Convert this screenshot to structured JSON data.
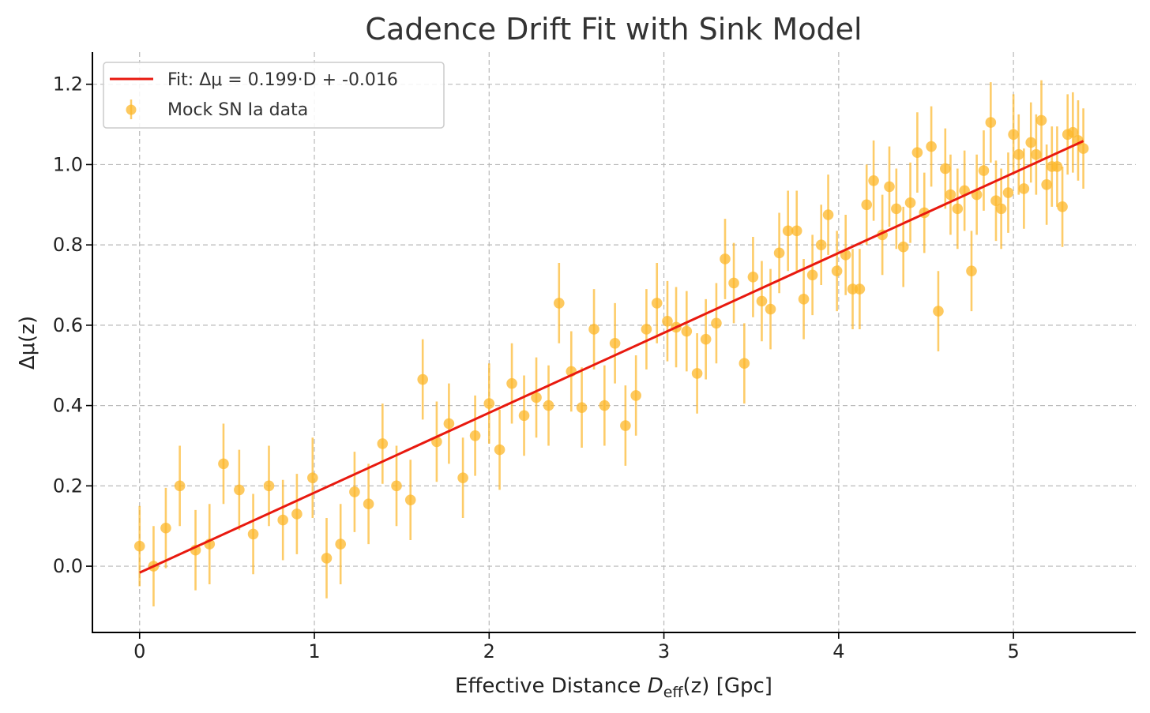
{
  "chart_data": {
    "type": "scatter",
    "title": "Cadence Drift Fit with Sink Model",
    "xlabel": {
      "prefix": "Effective Distance ",
      "var": "D",
      "sub": "eff",
      "arg": "(z)",
      "suffix": " [Gpc]"
    },
    "ylabel": "Δμ(z)",
    "xlim": [
      -0.27,
      5.7
    ],
    "ylim": [
      -0.165,
      1.28
    ],
    "xticks": [
      0,
      1,
      2,
      3,
      4,
      5
    ],
    "xtick_labels": [
      "0",
      "1",
      "2",
      "3",
      "4",
      "5"
    ],
    "yticks": [
      0.0,
      0.2,
      0.4,
      0.6,
      0.8,
      1.0,
      1.2
    ],
    "ytick_labels": [
      "0.0",
      "0.2",
      "0.4",
      "0.6",
      "0.8",
      "1.0",
      "1.2"
    ],
    "grid": true,
    "legend_position": "top-left",
    "colors": {
      "fit": "#e8190f",
      "data": "#fcb72a",
      "axis": "#000000"
    },
    "fit": {
      "label": "Fit: Δμ = 0.199·D + -0.016",
      "slope": 0.199,
      "intercept": -0.016,
      "x_range": [
        0,
        5.4
      ]
    },
    "series": [
      {
        "name": "Mock SN Ia data",
        "error": 0.1,
        "points": [
          [
            0.0,
            0.05
          ],
          [
            0.08,
            0.0
          ],
          [
            0.15,
            0.095
          ],
          [
            0.23,
            0.2
          ],
          [
            0.32,
            0.04
          ],
          [
            0.4,
            0.055
          ],
          [
            0.48,
            0.255
          ],
          [
            0.57,
            0.19
          ],
          [
            0.65,
            0.08
          ],
          [
            0.74,
            0.2
          ],
          [
            0.82,
            0.115
          ],
          [
            0.9,
            0.13
          ],
          [
            0.99,
            0.22
          ],
          [
            1.07,
            0.02
          ],
          [
            1.15,
            0.055
          ],
          [
            1.23,
            0.185
          ],
          [
            1.31,
            0.155
          ],
          [
            1.39,
            0.305
          ],
          [
            1.47,
            0.2
          ],
          [
            1.55,
            0.165
          ],
          [
            1.62,
            0.465
          ],
          [
            1.7,
            0.31
          ],
          [
            1.77,
            0.355
          ],
          [
            1.85,
            0.22
          ],
          [
            1.92,
            0.325
          ],
          [
            2.0,
            0.405
          ],
          [
            2.06,
            0.29
          ],
          [
            2.13,
            0.455
          ],
          [
            2.2,
            0.375
          ],
          [
            2.27,
            0.42
          ],
          [
            2.34,
            0.4
          ],
          [
            2.4,
            0.655
          ],
          [
            2.47,
            0.485
          ],
          [
            2.53,
            0.395
          ],
          [
            2.6,
            0.59
          ],
          [
            2.66,
            0.4
          ],
          [
            2.72,
            0.555
          ],
          [
            2.78,
            0.35
          ],
          [
            2.84,
            0.425
          ],
          [
            2.9,
            0.59
          ],
          [
            2.96,
            0.655
          ],
          [
            3.02,
            0.61
          ],
          [
            3.07,
            0.595
          ],
          [
            3.13,
            0.585
          ],
          [
            3.19,
            0.48
          ],
          [
            3.24,
            0.565
          ],
          [
            3.3,
            0.605
          ],
          [
            3.35,
            0.765
          ],
          [
            3.4,
            0.705
          ],
          [
            3.46,
            0.505
          ],
          [
            3.51,
            0.72
          ],
          [
            3.56,
            0.66
          ],
          [
            3.61,
            0.64
          ],
          [
            3.66,
            0.78
          ],
          [
            3.71,
            0.835
          ],
          [
            3.76,
            0.835
          ],
          [
            3.8,
            0.665
          ],
          [
            3.85,
            0.725
          ],
          [
            3.9,
            0.8
          ],
          [
            3.94,
            0.875
          ],
          [
            3.99,
            0.735
          ],
          [
            4.04,
            0.775
          ],
          [
            4.08,
            0.69
          ],
          [
            4.12,
            0.69
          ],
          [
            4.16,
            0.9
          ],
          [
            4.2,
            0.96
          ],
          [
            4.25,
            0.825
          ],
          [
            4.29,
            0.945
          ],
          [
            4.33,
            0.89
          ],
          [
            4.37,
            0.795
          ],
          [
            4.41,
            0.905
          ],
          [
            4.45,
            1.03
          ],
          [
            4.49,
            0.88
          ],
          [
            4.53,
            1.045
          ],
          [
            4.57,
            0.635
          ],
          [
            4.61,
            0.99
          ],
          [
            4.64,
            0.925
          ],
          [
            4.68,
            0.89
          ],
          [
            4.72,
            0.935
          ],
          [
            4.76,
            0.735
          ],
          [
            4.79,
            0.925
          ],
          [
            4.83,
            0.985
          ],
          [
            4.87,
            1.105
          ],
          [
            4.9,
            0.91
          ],
          [
            4.93,
            0.89
          ],
          [
            4.97,
            0.93
          ],
          [
            5.0,
            1.075
          ],
          [
            5.03,
            1.025
          ],
          [
            5.06,
            0.94
          ],
          [
            5.1,
            1.055
          ],
          [
            5.13,
            1.025
          ],
          [
            5.16,
            1.11
          ],
          [
            5.19,
            0.95
          ],
          [
            5.22,
            0.995
          ],
          [
            5.25,
            0.995
          ],
          [
            5.28,
            0.895
          ],
          [
            5.31,
            1.075
          ],
          [
            5.34,
            1.08
          ],
          [
            5.37,
            1.06
          ],
          [
            5.4,
            1.04
          ]
        ]
      }
    ]
  }
}
